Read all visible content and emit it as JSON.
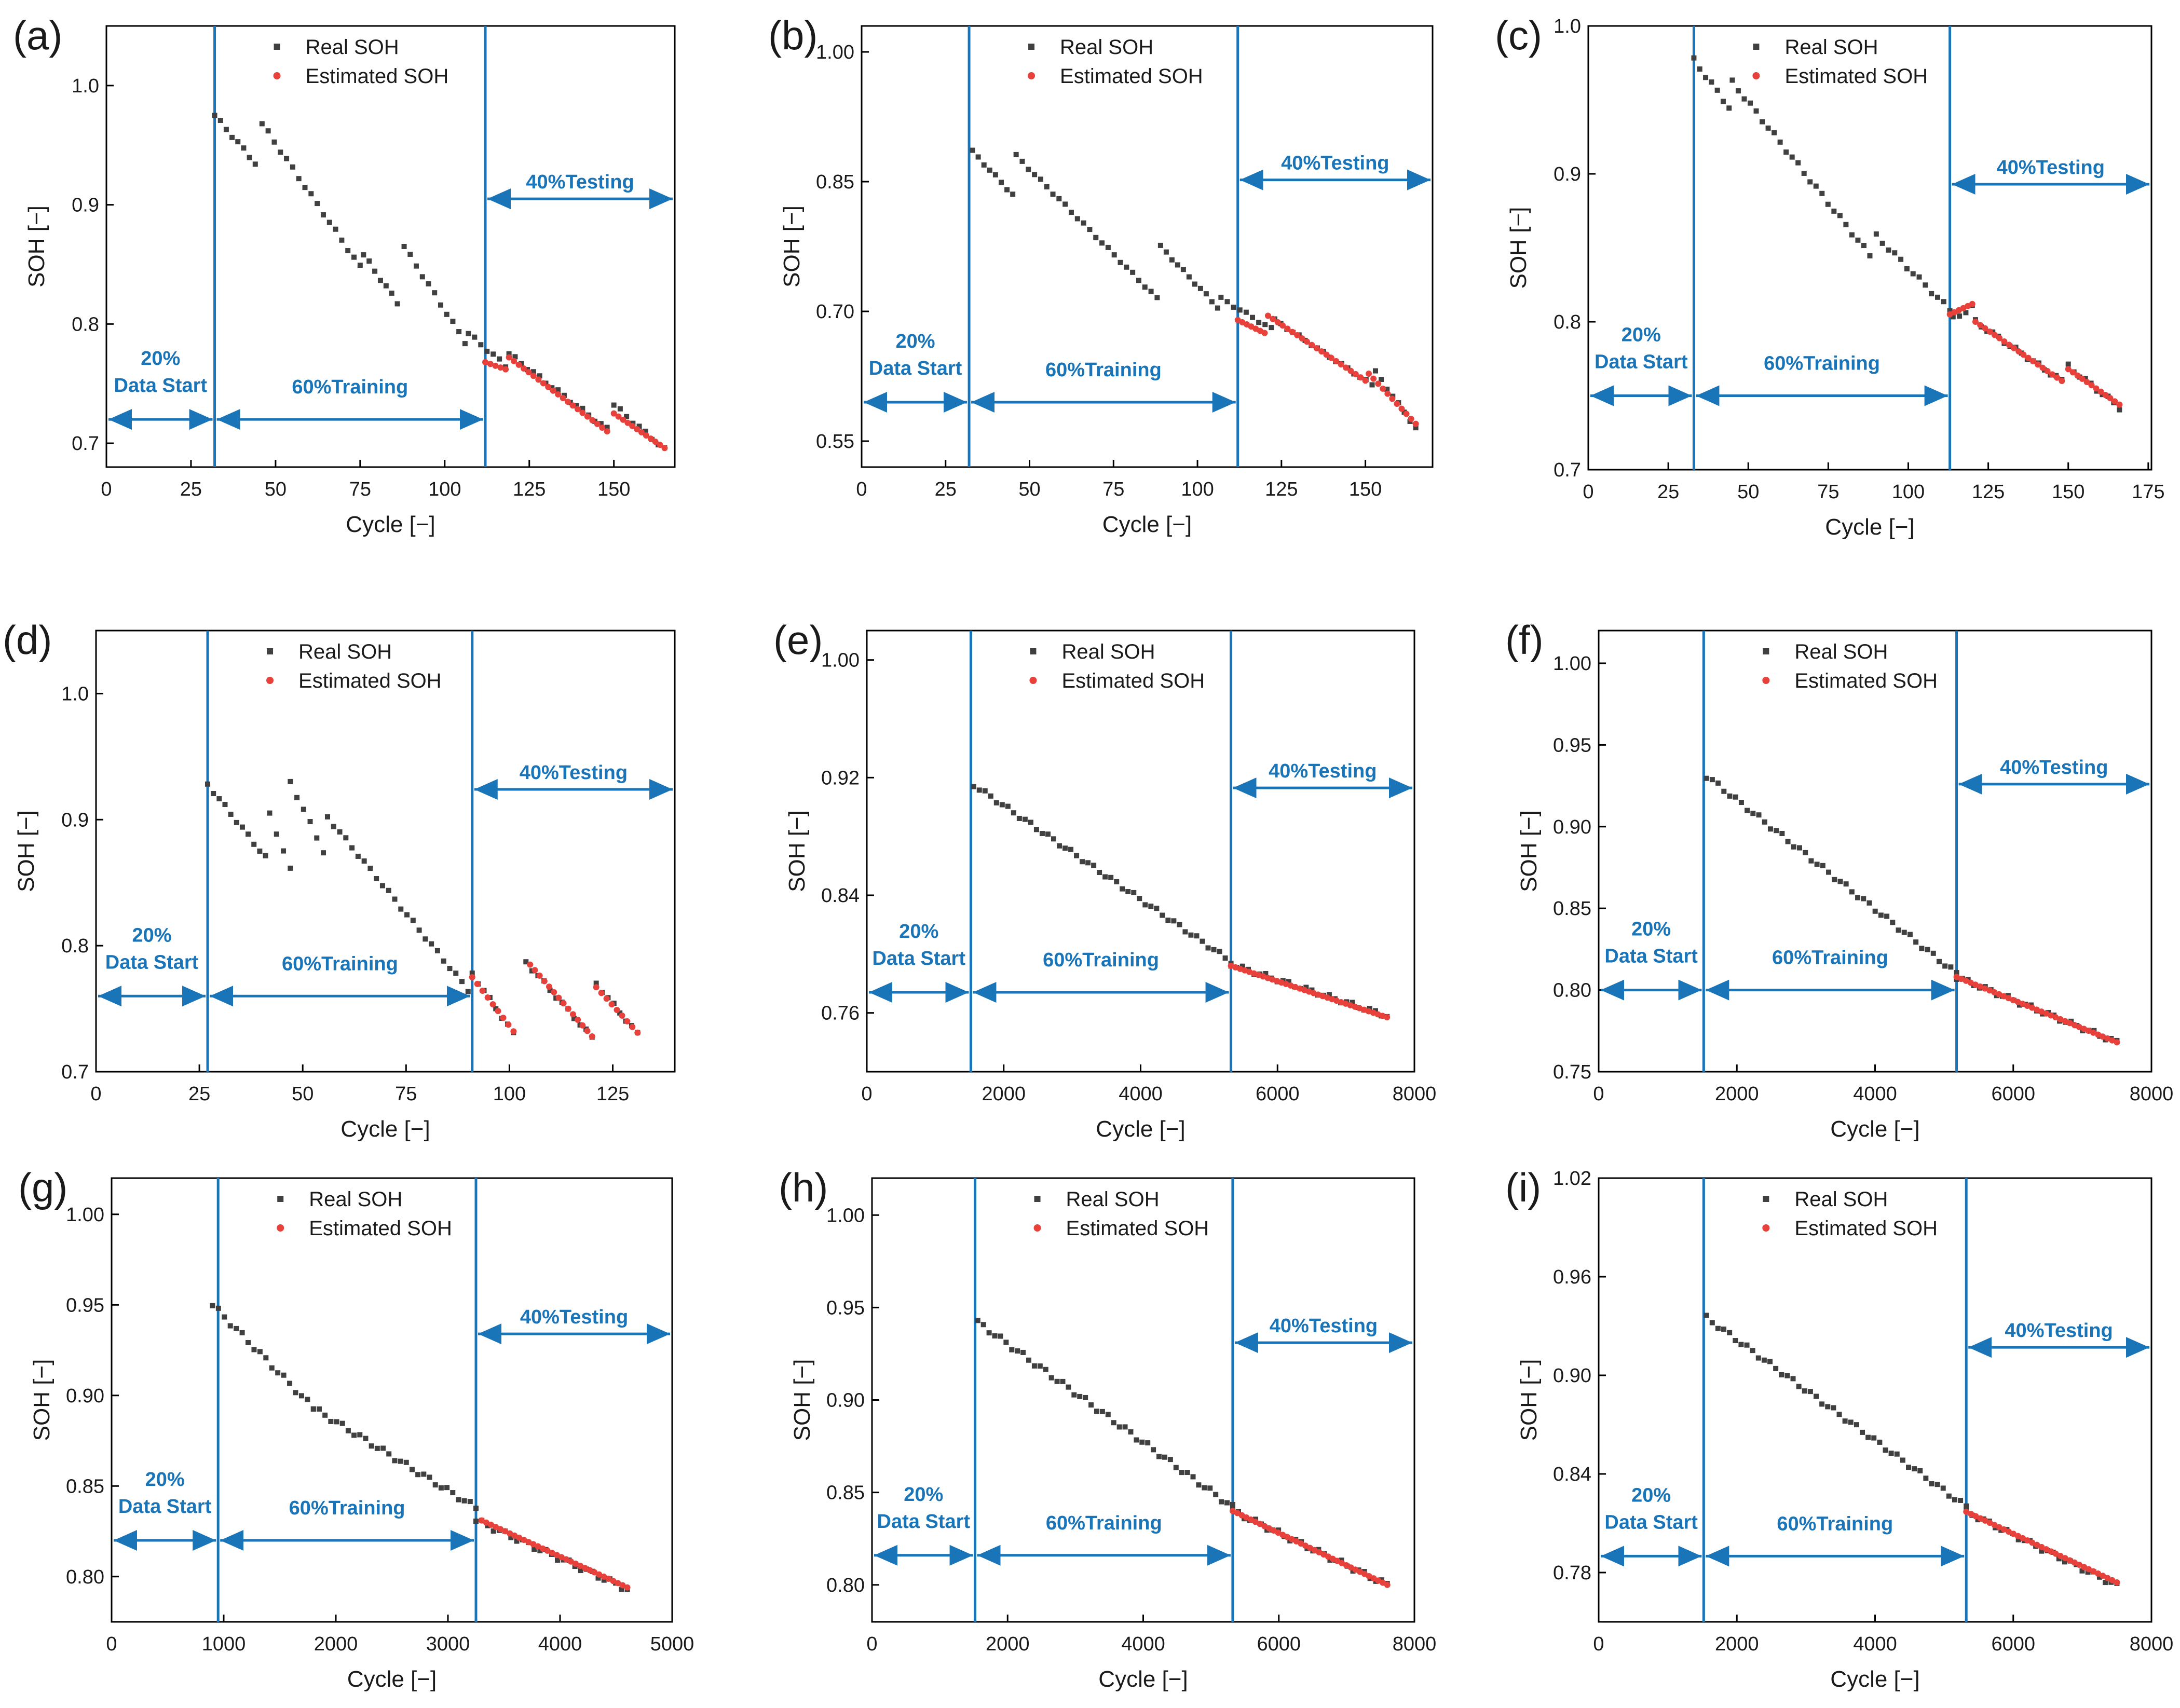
{
  "colors": {
    "real": "#404040",
    "estimated": "#e8403a",
    "annotation": "#1a74b8",
    "axis": "#000000",
    "text": "#1a1a1a"
  },
  "chart_data": [
    {
      "type": "scatter",
      "panel_label": "(a)",
      "xlabel": "Cycle [−]",
      "ylabel": "SOH [−]",
      "xlim": [
        0,
        168
      ],
      "ylim": [
        0.68,
        1.05
      ],
      "xticks": [
        0,
        25,
        50,
        75,
        100,
        125,
        150
      ],
      "xtick_labels": [
        "0",
        "25",
        "50",
        "75",
        "100",
        "125",
        "150"
      ],
      "yticks": [
        0.7,
        0.8,
        0.9,
        1.0
      ],
      "ytick_labels": [
        "0.7",
        "0.8",
        "0.9",
        "1.0"
      ],
      "legend": [
        "Real SOH",
        "Estimated SOH"
      ],
      "split_x": [
        32,
        112
      ],
      "segments": {
        "data_start": "20%\nData Start",
        "training": "60%Training",
        "testing": "40%Testing"
      },
      "arrow_y": {
        "start_training": 0.72,
        "testing": 0.905
      },
      "real_segments": [
        [
          32,
          0.975,
          44,
          0.935
        ],
        [
          46,
          0.968,
          75,
          0.848
        ],
        [
          76,
          0.858,
          86,
          0.818
        ],
        [
          88,
          0.865,
          106,
          0.785
        ],
        [
          107,
          0.792,
          118,
          0.765
        ],
        [
          119,
          0.775,
          148,
          0.712
        ],
        [
          150,
          0.732,
          165,
          0.695
        ]
      ],
      "est_segments": [
        [
          112,
          0.768,
          118,
          0.762
        ],
        [
          119,
          0.772,
          148,
          0.71
        ],
        [
          150,
          0.725,
          165,
          0.696
        ]
      ]
    },
    {
      "type": "scatter",
      "panel_label": "(b)",
      "xlabel": "Cycle [−]",
      "ylabel": "SOH [−]",
      "xlim": [
        0,
        170
      ],
      "ylim": [
        0.52,
        1.03
      ],
      "xticks": [
        0,
        25,
        50,
        75,
        100,
        125,
        150
      ],
      "xtick_labels": [
        "0",
        "25",
        "50",
        "75",
        "100",
        "125",
        "150"
      ],
      "yticks": [
        0.55,
        0.7,
        0.85,
        1.0
      ],
      "ytick_labels": [
        "0.55",
        "0.70",
        "0.85",
        "1.00"
      ],
      "legend": [
        "Real SOH",
        "Estimated SOH"
      ],
      "split_x": [
        32,
        112
      ],
      "segments": {
        "data_start": "20%\nData Start",
        "training": "60%Training",
        "testing": "40%Testing"
      },
      "arrow_y": {
        "start_training": 0.595,
        "testing": 0.852
      },
      "real_segments": [
        [
          33,
          0.885,
          45,
          0.835
        ],
        [
          46,
          0.88,
          88,
          0.715
        ],
        [
          89,
          0.775,
          106,
          0.705
        ],
        [
          107,
          0.715,
          122,
          0.68
        ],
        [
          123,
          0.69,
          152,
          0.615
        ],
        [
          153,
          0.63,
          165,
          0.565
        ]
      ],
      "est_segments": [
        [
          112,
          0.69,
          120,
          0.675
        ],
        [
          121,
          0.695,
          150,
          0.62
        ],
        [
          151,
          0.628,
          165,
          0.57
        ]
      ]
    },
    {
      "type": "scatter",
      "panel_label": "(c)",
      "xlabel": "Cycle [−]",
      "ylabel": "SOH [−]",
      "xlim": [
        0,
        176
      ],
      "ylim": [
        0.7,
        1.0
      ],
      "xticks": [
        0,
        25,
        50,
        75,
        100,
        125,
        150,
        175
      ],
      "xtick_labels": [
        "0",
        "25",
        "50",
        "75",
        "100",
        "125",
        "150",
        "175"
      ],
      "yticks": [
        0.7,
        0.8,
        0.9,
        1.0
      ],
      "ytick_labels": [
        "0.7",
        "0.8",
        "0.9",
        "1.0"
      ],
      "legend": [
        "Real SOH",
        "Estimated SOH"
      ],
      "split_x": [
        33,
        113
      ],
      "segments": {
        "data_start": "20%\nData Start",
        "training": "60%Training",
        "testing": "40%Testing"
      },
      "arrow_y": {
        "start_training": 0.75,
        "testing": 0.893
      },
      "real_segments": [
        [
          33,
          0.977,
          44,
          0.945
        ],
        [
          45,
          0.962,
          88,
          0.845
        ],
        [
          90,
          0.858,
          113,
          0.808
        ],
        [
          114,
          0.802,
          120,
          0.81
        ],
        [
          121,
          0.8,
          148,
          0.76
        ],
        [
          150,
          0.77,
          166,
          0.742
        ]
      ],
      "est_segments": [
        [
          113,
          0.805,
          120,
          0.812
        ],
        [
          121,
          0.8,
          148,
          0.76
        ],
        [
          150,
          0.768,
          166,
          0.744
        ]
      ]
    },
    {
      "type": "scatter",
      "panel_label": "(d)",
      "xlabel": "Cycle [−]",
      "ylabel": "SOH [−]",
      "xlim": [
        0,
        140
      ],
      "ylim": [
        0.7,
        1.05
      ],
      "xticks": [
        0,
        25,
        50,
        75,
        100,
        125
      ],
      "xtick_labels": [
        "0",
        "25",
        "50",
        "75",
        "100",
        "125"
      ],
      "yticks": [
        0.7,
        0.8,
        0.9,
        1.0
      ],
      "ytick_labels": [
        "0.7",
        "0.8",
        "0.9",
        "1.0"
      ],
      "legend": [
        "Real SOH",
        "Estimated SOH"
      ],
      "split_x": [
        27,
        91
      ],
      "segments": {
        "data_start": "20%\nData Start",
        "training": "60%Training",
        "testing": "40%Testing"
      },
      "arrow_y": {
        "start_training": 0.76,
        "testing": 0.924
      },
      "real_segments": [
        [
          27,
          0.928,
          41,
          0.87
        ],
        [
          42,
          0.905,
          47,
          0.86
        ],
        [
          47,
          0.93,
          55,
          0.875
        ],
        [
          56,
          0.902,
          90,
          0.765
        ],
        [
          91,
          0.778,
          101,
          0.73
        ],
        [
          104,
          0.787,
          120,
          0.727
        ],
        [
          121,
          0.77,
          131,
          0.73
        ]
      ],
      "est_segments": [
        [
          91,
          0.775,
          101,
          0.732
        ],
        [
          105,
          0.785,
          120,
          0.728
        ],
        [
          121,
          0.767,
          131,
          0.731
        ]
      ]
    },
    {
      "type": "scatter",
      "panel_label": "(e)",
      "xlabel": "Cycle [−]",
      "ylabel": "SOH [−]",
      "xlim": [
        0,
        8000
      ],
      "ylim": [
        0.72,
        1.02
      ],
      "xticks": [
        0,
        2000,
        4000,
        6000,
        8000
      ],
      "xtick_labels": [
        "0",
        "2000",
        "4000",
        "6000",
        "8000"
      ],
      "yticks": [
        0.76,
        0.84,
        0.92,
        1.0
      ],
      "ytick_labels": [
        "0.76",
        "0.84",
        "0.92",
        "1.00"
      ],
      "legend": [
        "Real SOH",
        "Estimated SOH"
      ],
      "split_x": [
        1520,
        5320
      ],
      "segments": {
        "data_start": "20%\nData Start",
        "training": "60%Training",
        "testing": "40%Testing"
      },
      "arrow_y": {
        "start_training": 0.774,
        "testing": 0.913
      },
      "real_segments": [
        [
          1560,
          0.915,
          5320,
          0.795
        ],
        [
          5320,
          0.793,
          7600,
          0.758
        ]
      ],
      "est_segments": [
        [
          5320,
          0.792,
          7600,
          0.757
        ]
      ]
    },
    {
      "type": "scatter",
      "panel_label": "(f)",
      "xlabel": "Cycle [−]",
      "ylabel": "SOH [−]",
      "xlim": [
        0,
        8000
      ],
      "ylim": [
        0.75,
        1.02
      ],
      "xticks": [
        0,
        2000,
        4000,
        6000,
        8000
      ],
      "xtick_labels": [
        "0",
        "2000",
        "4000",
        "6000",
        "8000"
      ],
      "yticks": [
        0.75,
        0.8,
        0.85,
        0.9,
        0.95,
        1.0
      ],
      "ytick_labels": [
        "0.75",
        "0.80",
        "0.85",
        "0.90",
        "0.95",
        "1.00"
      ],
      "legend": [
        "Real SOH",
        "Estimated SOH"
      ],
      "split_x": [
        1520,
        5180
      ],
      "segments": {
        "data_start": "20%\nData Start",
        "training": "60%Training",
        "testing": "40%Testing"
      },
      "arrow_y": {
        "start_training": 0.8,
        "testing": 0.926
      },
      "real_segments": [
        [
          1560,
          0.931,
          5180,
          0.81
        ],
        [
          5180,
          0.808,
          7500,
          0.768
        ]
      ],
      "est_segments": [
        [
          5180,
          0.808,
          7500,
          0.768
        ]
      ]
    },
    {
      "type": "scatter",
      "panel_label": "(g)",
      "xlabel": "Cycle [−]",
      "ylabel": "SOH [−]",
      "xlim": [
        0,
        5000
      ],
      "ylim": [
        0.775,
        1.02
      ],
      "xticks": [
        0,
        1000,
        2000,
        3000,
        4000,
        5000
      ],
      "xtick_labels": [
        "0",
        "1000",
        "2000",
        "3000",
        "4000",
        "5000"
      ],
      "yticks": [
        0.8,
        0.85,
        0.9,
        0.95,
        1.0
      ],
      "ytick_labels": [
        "0.80",
        "0.85",
        "0.90",
        "0.95",
        "1.00"
      ],
      "legend": [
        "Real SOH",
        "Estimated SOH"
      ],
      "split_x": [
        950,
        3250
      ],
      "segments": {
        "data_start": "20%\nData Start",
        "training": "60%Training",
        "testing": "40%Testing"
      },
      "arrow_y": {
        "start_training": 0.82,
        "testing": 0.934
      },
      "real_segments": [
        [
          900,
          0.95,
          1800,
          0.893
        ],
        [
          1800,
          0.893,
          3250,
          0.838
        ],
        [
          3250,
          0.831,
          4600,
          0.793
        ]
      ],
      "est_segments": [
        [
          3300,
          0.831,
          4600,
          0.794
        ]
      ]
    },
    {
      "type": "scatter",
      "panel_label": "(h)",
      "xlabel": "Cycle [−]",
      "ylabel": "SOH [−]",
      "xlim": [
        0,
        8000
      ],
      "ylim": [
        0.78,
        1.02
      ],
      "xticks": [
        0,
        2000,
        4000,
        6000,
        8000
      ],
      "xtick_labels": [
        "0",
        "2000",
        "4000",
        "6000",
        "8000"
      ],
      "yticks": [
        0.8,
        0.85,
        0.9,
        0.95,
        1.0
      ],
      "ytick_labels": [
        "0.80",
        "0.85",
        "0.90",
        "0.95",
        "1.00"
      ],
      "legend": [
        "Real SOH",
        "Estimated SOH"
      ],
      "split_x": [
        1520,
        5320
      ],
      "segments": {
        "data_start": "20%\nData Start",
        "training": "60%Training",
        "testing": "40%Testing"
      },
      "arrow_y": {
        "start_training": 0.816,
        "testing": 0.931
      },
      "real_segments": [
        [
          1560,
          0.942,
          5320,
          0.842
        ],
        [
          5320,
          0.84,
          7600,
          0.8
        ]
      ],
      "est_segments": [
        [
          5320,
          0.84,
          7600,
          0.8
        ]
      ]
    },
    {
      "type": "scatter",
      "panel_label": "(i)",
      "xlabel": "Cycle [−]",
      "ylabel": "SOH [−]",
      "xlim": [
        0,
        8000
      ],
      "ylim": [
        0.75,
        1.02
      ],
      "xticks": [
        0,
        2000,
        4000,
        6000,
        8000
      ],
      "xtick_labels": [
        "0",
        "2000",
        "4000",
        "6000",
        "8000"
      ],
      "yticks": [
        0.78,
        0.84,
        0.9,
        0.96,
        1.02
      ],
      "ytick_labels": [
        "0.78",
        "0.84",
        "0.90",
        "0.96",
        "1.02"
      ],
      "legend": [
        "Real SOH",
        "Estimated SOH"
      ],
      "split_x": [
        1520,
        5320
      ],
      "segments": {
        "data_start": "20%\nData Start",
        "training": "60%Training",
        "testing": "40%Testing"
      },
      "arrow_y": {
        "start_training": 0.79,
        "testing": 0.917
      },
      "real_segments": [
        [
          1560,
          0.935,
          5320,
          0.82
        ],
        [
          5320,
          0.817,
          7500,
          0.772
        ]
      ],
      "est_segments": [
        [
          5320,
          0.817,
          7500,
          0.774
        ]
      ]
    }
  ]
}
